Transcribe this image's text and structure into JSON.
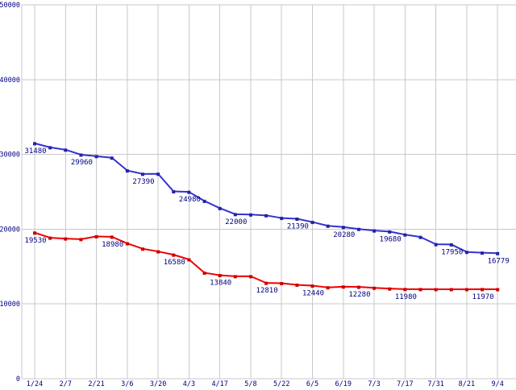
{
  "colors": {
    "background": "#ffffff",
    "grid": "#c8c8c8",
    "axis_text": "#000080",
    "series_blue": "#3333cc",
    "series_blue_marker": "#2222aa",
    "series_red": "#ee0000",
    "series_red_marker": "#cc0000"
  },
  "chart_data": {
    "type": "line",
    "title": "",
    "xlabel": "",
    "ylabel": "",
    "grid": true,
    "legend_position": "none",
    "ylim": [
      0,
      50000
    ],
    "y_tick_labels": [
      "0",
      "10000",
      "20000",
      "30000",
      "40000",
      "50000"
    ],
    "y_tick_values": [
      0,
      10000,
      20000,
      30000,
      40000,
      50000
    ],
    "x_tick_labels": [
      "1/24",
      "2/7",
      "2/21",
      "3/6",
      "3/20",
      "4/3",
      "4/17",
      "5/8",
      "5/22",
      "6/5",
      "6/19",
      "7/3",
      "7/17",
      "7/31",
      "8/21",
      "9/4"
    ],
    "points_per_interval": 2,
    "series": [
      {
        "name": "upper-series-blue",
        "color": "#3333cc",
        "marker_color": "#2222aa",
        "values": [
          31480,
          30940,
          30620,
          29960,
          29760,
          29550,
          27840,
          27390,
          27400,
          25050,
          24980,
          23770,
          22810,
          22000,
          21950,
          21840,
          21490,
          21390,
          20950,
          20450,
          20280,
          20020,
          19810,
          19680,
          19270,
          18950,
          17980,
          17950,
          16950,
          16850,
          16779
        ],
        "point_labels": {
          "0": "31480",
          "3": "29960",
          "7": "27390",
          "10": "24980",
          "13": "22000",
          "17": "21390",
          "20": "20280",
          "23": "19680",
          "27": "17950",
          "30": "16779"
        }
      },
      {
        "name": "lower-series-red",
        "color": "#ee0000",
        "marker_color": "#cc0000",
        "values": [
          19530,
          18850,
          18740,
          18660,
          19030,
          18980,
          18100,
          17380,
          17020,
          16580,
          15950,
          14170,
          13840,
          13700,
          13700,
          12810,
          12770,
          12560,
          12440,
          12210,
          12310,
          12280,
          12150,
          12050,
          11980,
          11970,
          11960,
          11960,
          11960,
          11970,
          11960
        ],
        "point_labels": {
          "0": "19530",
          "5": "18980",
          "9": "16580",
          "12": "13840",
          "15": "12810",
          "18": "12440",
          "21": "12280",
          "24": "11980",
          "29": "11970"
        }
      }
    ]
  }
}
